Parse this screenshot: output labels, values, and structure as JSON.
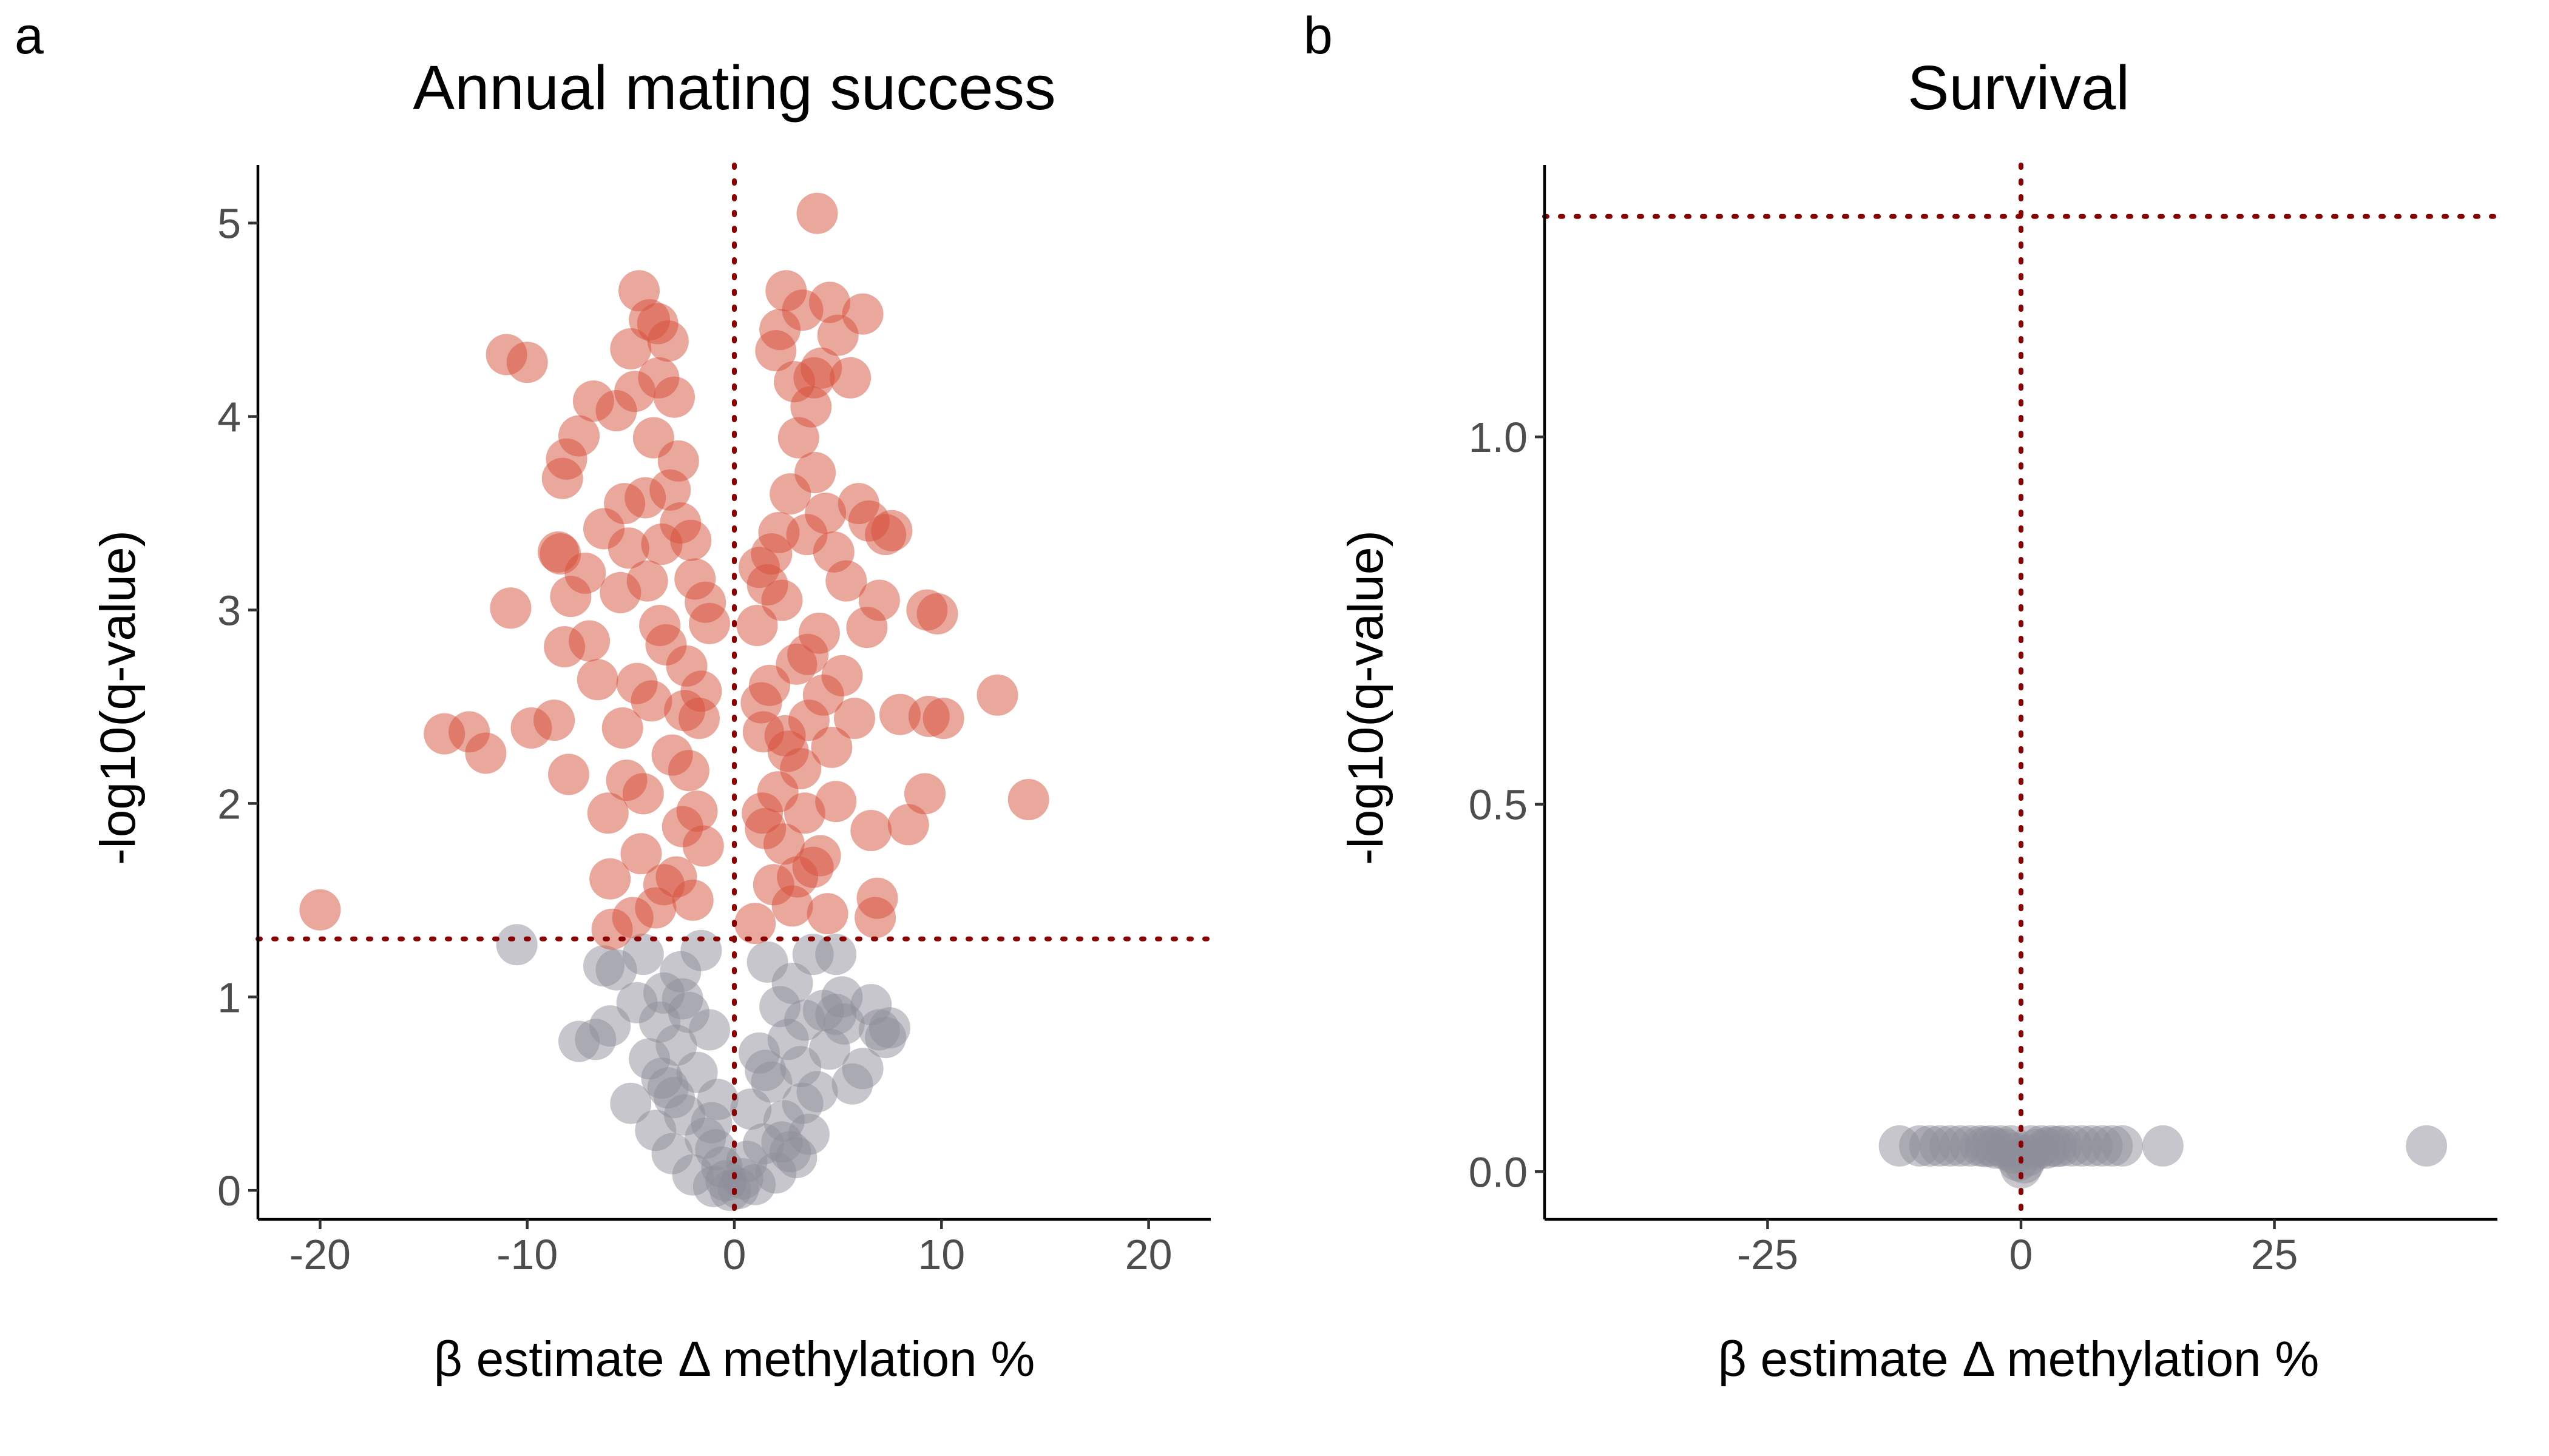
{
  "figure": {
    "panels": [
      {
        "tag": "a",
        "title": "Annual mating success",
        "xlabel": "β estimate Δ methylation %",
        "ylabel": "-log10(q-value)"
      },
      {
        "tag": "b",
        "title": "Survival",
        "xlabel": "β estimate Δ methylation %",
        "ylabel": "-log10(q-value)"
      }
    ]
  },
  "chart_data": [
    {
      "type": "scatter",
      "title": "Annual mating success",
      "xlabel": "β estimate Δ methylation %",
      "ylabel": "-log10(q-value)",
      "xlim": [
        -23,
        23
      ],
      "ylim": [
        -0.15,
        5.3
      ],
      "xticks": [
        -20,
        -10,
        0,
        10,
        20
      ],
      "xtick_labels": [
        "-20",
        "-10",
        "0",
        "10",
        "20"
      ],
      "yticks": [
        0,
        1,
        2,
        3,
        4,
        5
      ],
      "ytick_labels": [
        "0",
        "1",
        "2",
        "3",
        "4",
        "5"
      ],
      "grid": false,
      "legend": "none",
      "vline_x": 0,
      "hline_y": 1.3,
      "colors": {
        "significant": "#d6503a",
        "not_significant": "#8d8d99",
        "reference_line": "#8b0000"
      },
      "series": [
        {
          "values_significant": [
            [
              -20.0,
              1.45
            ],
            [
              -14.0,
              2.36
            ],
            [
              -12.8,
              2.37
            ],
            [
              -12.0,
              2.26
            ],
            [
              -11.0,
              4.32
            ],
            [
              -10.8,
              3.01
            ],
            [
              -10.0,
              4.28
            ],
            [
              -9.8,
              2.39
            ],
            [
              -8.7,
              2.43
            ],
            [
              -8.5,
              3.3
            ],
            [
              -8.4,
              3.29
            ],
            [
              -8.3,
              3.68
            ],
            [
              -8.1,
              3.78
            ],
            [
              -8.2,
              2.81
            ],
            [
              -8.0,
              2.15
            ],
            [
              -7.9,
              3.07
            ],
            [
              -7.5,
              3.9
            ],
            [
              -7.2,
              3.19
            ],
            [
              -7.0,
              2.84
            ],
            [
              -6.8,
              4.08
            ],
            [
              -6.6,
              2.64
            ],
            [
              -6.3,
              3.42
            ],
            [
              -6.1,
              1.95
            ],
            [
              -6.0,
              1.61
            ],
            [
              -5.9,
              1.35
            ],
            [
              -5.7,
              4.03
            ],
            [
              -5.5,
              3.09
            ],
            [
              -5.4,
              2.39
            ],
            [
              -5.2,
              2.12
            ],
            [
              -5.1,
              3.32
            ],
            [
              -5.0,
              4.35
            ],
            [
              -4.9,
              1.41
            ],
            [
              -4.8,
              4.13
            ],
            [
              -4.6,
              4.65
            ],
            [
              -4.5,
              1.74
            ],
            [
              -4.3,
              3.58
            ],
            [
              -4.1,
              4.5
            ],
            [
              -3.9,
              3.89
            ],
            [
              -3.7,
              4.48
            ],
            [
              -3.6,
              2.92
            ],
            [
              -3.5,
              3.34
            ],
            [
              -3.4,
              1.58
            ],
            [
              -3.2,
              4.39
            ],
            [
              -3.0,
              2.25
            ],
            [
              -2.9,
              4.1
            ],
            [
              -2.7,
              3.77
            ],
            [
              -2.5,
              1.88
            ],
            [
              -2.3,
              2.71
            ],
            [
              -2.1,
              3.36
            ],
            [
              -1.9,
              3.16
            ],
            [
              -1.8,
              1.96
            ],
            [
              -1.6,
              2.58
            ],
            [
              -1.4,
              3.04
            ],
            [
              -1.2,
              2.93
            ],
            [
              -4.4,
              2.05
            ],
            [
              -4.0,
              2.53
            ],
            [
              -3.8,
              1.46
            ],
            [
              -3.3,
              2.82
            ],
            [
              -2.8,
              1.62
            ],
            [
              -2.6,
              3.45
            ],
            [
              -2.2,
              2.17
            ],
            [
              -2.0,
              1.5
            ],
            [
              -1.7,
              2.44
            ],
            [
              -1.5,
              1.78
            ],
            [
              -4.2,
              3.15
            ],
            [
              -3.1,
              3.62
            ],
            [
              -2.4,
              2.48
            ],
            [
              -4.7,
              2.62
            ],
            [
              -5.3,
              3.55
            ],
            [
              -3.65,
              4.2
            ],
            [
              1.0,
              1.38
            ],
            [
              1.1,
              2.92
            ],
            [
              1.2,
              3.22
            ],
            [
              1.3,
              2.52
            ],
            [
              1.4,
              2.37
            ],
            [
              1.5,
              1.87
            ],
            [
              1.6,
              3.13
            ],
            [
              1.7,
              2.61
            ],
            [
              1.8,
              3.29
            ],
            [
              1.9,
              1.58
            ],
            [
              2.0,
              4.34
            ],
            [
              2.1,
              2.06
            ],
            [
              2.2,
              4.45
            ],
            [
              2.3,
              3.05
            ],
            [
              2.4,
              1.79
            ],
            [
              2.5,
              4.65
            ],
            [
              2.6,
              2.27
            ],
            [
              2.7,
              3.6
            ],
            [
              2.8,
              1.47
            ],
            [
              2.9,
              4.18
            ],
            [
              3.0,
              2.72
            ],
            [
              3.1,
              3.89
            ],
            [
              3.2,
              2.18
            ],
            [
              3.3,
              4.55
            ],
            [
              3.4,
              1.95
            ],
            [
              3.5,
              3.39
            ],
            [
              3.6,
              2.43
            ],
            [
              3.7,
              4.05
            ],
            [
              3.8,
              1.67
            ],
            [
              3.9,
              3.71
            ],
            [
              4.0,
              5.05
            ],
            [
              4.1,
              2.88
            ],
            [
              4.2,
              4.25
            ],
            [
              4.3,
              2.56
            ],
            [
              4.4,
              3.5
            ],
            [
              4.5,
              1.43
            ],
            [
              4.6,
              4.59
            ],
            [
              4.7,
              2.29
            ],
            [
              4.8,
              3.3
            ],
            [
              4.9,
              2.01
            ],
            [
              5.0,
              4.42
            ],
            [
              5.2,
              2.66
            ],
            [
              5.4,
              3.15
            ],
            [
              5.6,
              4.2
            ],
            [
              5.8,
              2.44
            ],
            [
              6.0,
              3.55
            ],
            [
              6.2,
              4.53
            ],
            [
              6.4,
              2.91
            ],
            [
              6.5,
              3.46
            ],
            [
              6.6,
              1.86
            ],
            [
              6.8,
              1.41
            ],
            [
              6.9,
              1.51
            ],
            [
              7.0,
              3.05
            ],
            [
              7.3,
              3.39
            ],
            [
              7.6,
              3.41
            ],
            [
              8.0,
              2.46
            ],
            [
              8.4,
              1.89
            ],
            [
              9.2,
              2.05
            ],
            [
              9.3,
              3.0
            ],
            [
              9.4,
              2.45
            ],
            [
              9.8,
              2.98
            ],
            [
              10.1,
              2.44
            ],
            [
              12.7,
              2.56
            ],
            [
              14.2,
              2.02
            ],
            [
              2.45,
              2.35
            ],
            [
              3.05,
              1.62
            ],
            [
              3.55,
              2.77
            ],
            [
              4.15,
              1.73
            ],
            [
              1.35,
              1.95
            ],
            [
              2.15,
              3.4
            ],
            [
              3.85,
              4.2
            ]
          ],
          "values_not_significant": [
            [
              -10.5,
              1.27
            ],
            [
              -7.5,
              0.77
            ],
            [
              -6.7,
              0.78
            ],
            [
              -6.3,
              1.16
            ],
            [
              -6.0,
              0.85
            ],
            [
              -5.7,
              1.14
            ],
            [
              -5.0,
              0.45
            ],
            [
              -4.7,
              0.97
            ],
            [
              -4.4,
              1.22
            ],
            [
              -4.1,
              0.68
            ],
            [
              -3.8,
              0.31
            ],
            [
              -3.6,
              0.87
            ],
            [
              -3.4,
              1.02
            ],
            [
              -3.2,
              0.53
            ],
            [
              -3.0,
              0.19
            ],
            [
              -2.8,
              0.75
            ],
            [
              -2.6,
              1.13
            ],
            [
              -2.4,
              0.39
            ],
            [
              -2.2,
              0.92
            ],
            [
              -2.0,
              0.08
            ],
            [
              -1.8,
              0.61
            ],
            [
              -1.6,
              1.24
            ],
            [
              -1.4,
              0.27
            ],
            [
              -1.2,
              0.83
            ],
            [
              -1.0,
              0.02
            ],
            [
              -0.8,
              0.47
            ],
            [
              -0.6,
              0.12
            ],
            [
              -0.4,
              0.05
            ],
            [
              -0.2,
              0.0
            ],
            [
              0.2,
              0.01
            ],
            [
              0.4,
              0.06
            ],
            [
              0.6,
              0.15
            ],
            [
              0.8,
              0.42
            ],
            [
              1.0,
              0.03
            ],
            [
              1.2,
              0.71
            ],
            [
              1.4,
              0.24
            ],
            [
              1.6,
              1.18
            ],
            [
              1.8,
              0.56
            ],
            [
              2.0,
              0.09
            ],
            [
              2.2,
              0.95
            ],
            [
              2.4,
              0.36
            ],
            [
              2.6,
              0.78
            ],
            [
              2.8,
              1.07
            ],
            [
              3.0,
              0.17
            ],
            [
              3.2,
              0.64
            ],
            [
              3.4,
              0.88
            ],
            [
              3.6,
              0.29
            ],
            [
              3.8,
              1.22
            ],
            [
              4.0,
              0.51
            ],
            [
              4.3,
              0.93
            ],
            [
              4.6,
              0.73
            ],
            [
              4.9,
              0.91
            ],
            [
              5.3,
              0.86
            ],
            [
              5.7,
              0.55
            ],
            [
              6.2,
              0.63
            ],
            [
              6.6,
              0.96
            ],
            [
              7.0,
              0.83
            ],
            [
              7.3,
              0.79
            ],
            [
              7.5,
              0.84
            ],
            [
              4.9,
              1.22
            ],
            [
              5.2,
              1.0
            ],
            [
              -2.9,
              0.48
            ],
            [
              2.3,
              0.25
            ],
            [
              -1.1,
              0.35
            ],
            [
              1.5,
              0.62
            ],
            [
              -3.5,
              0.58
            ],
            [
              3.3,
              0.45
            ],
            [
              -2.5,
              0.99
            ],
            [
              2.7,
              0.2
            ],
            [
              -0.9,
              0.21
            ]
          ]
        }
      ]
    },
    {
      "type": "scatter",
      "title": "Survival",
      "xlabel": "β estimate Δ methylation %",
      "ylabel": "-log10(q-value)",
      "xlim": [
        -47,
        47
      ],
      "ylim": [
        -0.065,
        1.37
      ],
      "xticks": [
        -25,
        0,
        25
      ],
      "xtick_labels": [
        "-25",
        "0",
        "25"
      ],
      "yticks": [
        0.0,
        0.5,
        1.0
      ],
      "ytick_labels": [
        "0.0",
        "0.5",
        "1.0"
      ],
      "grid": false,
      "legend": "none",
      "vline_x": 0,
      "hline_y": 1.3,
      "colors": {
        "significant": "#d6503a",
        "not_significant": "#8d8d99",
        "reference_line": "#8b0000"
      },
      "series": [
        {
          "values_significant": [],
          "values_not_significant": [
            [
              -12.0,
              0.035
            ],
            [
              -10.0,
              0.035
            ],
            [
              -9.0,
              0.035
            ],
            [
              -8.0,
              0.035
            ],
            [
              -7.0,
              0.035
            ],
            [
              -6.0,
              0.035
            ],
            [
              -5.0,
              0.035
            ],
            [
              -4.0,
              0.035
            ],
            [
              -3.0,
              0.035
            ],
            [
              -2.0,
              0.035
            ],
            [
              -1.0,
              0.035
            ],
            [
              1.0,
              0.035
            ],
            [
              2.0,
              0.035
            ],
            [
              3.0,
              0.035
            ],
            [
              4.0,
              0.035
            ],
            [
              5.0,
              0.035
            ],
            [
              6.0,
              0.035
            ],
            [
              7.0,
              0.035
            ],
            [
              8.0,
              0.035
            ],
            [
              9.0,
              0.035
            ],
            [
              10.0,
              0.035
            ],
            [
              14.0,
              0.035
            ],
            [
              40.0,
              0.035
            ],
            [
              -1.5,
              0.03
            ],
            [
              -0.7,
              0.025
            ],
            [
              -0.3,
              0.015
            ],
            [
              0.0,
              0.005
            ],
            [
              0.3,
              0.012
            ],
            [
              0.7,
              0.022
            ],
            [
              1.5,
              0.03
            ],
            [
              -2.5,
              0.032
            ],
            [
              2.5,
              0.032
            ],
            [
              -3.5,
              0.034
            ],
            [
              3.5,
              0.034
            ]
          ]
        }
      ]
    }
  ]
}
